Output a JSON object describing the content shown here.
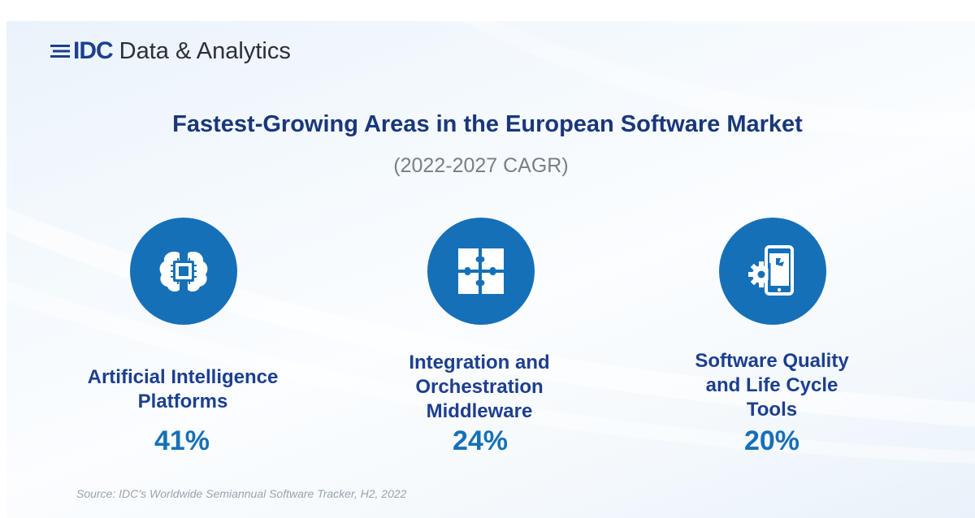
{
  "brand": {
    "logo_text": "IDC",
    "name": "Data & Analytics"
  },
  "title": "Fastest-Growing Areas in the European Software Market",
  "subtitle": "(2022-2027 CAGR)",
  "items": [
    {
      "label_lines": [
        "Artificial Intelligence",
        "Platforms"
      ],
      "value": "41%",
      "icon": "brain-chip-icon"
    },
    {
      "label_lines": [
        "Integration and",
        "Orchestration",
        "Middleware"
      ],
      "value": "24%",
      "icon": "puzzle-icon"
    },
    {
      "label_lines": [
        "Software Quality",
        "and Life Cycle",
        "Tools"
      ],
      "value": "20%",
      "icon": "gear-tablet-icon"
    }
  ],
  "source": "Source: IDC’s Worldwide Semiannual Software Tracker, H2, 2022",
  "colors": {
    "accent": "#1670b8",
    "title": "#19377a",
    "subtitle": "#7a7f86",
    "source": "#9aa3ad"
  }
}
